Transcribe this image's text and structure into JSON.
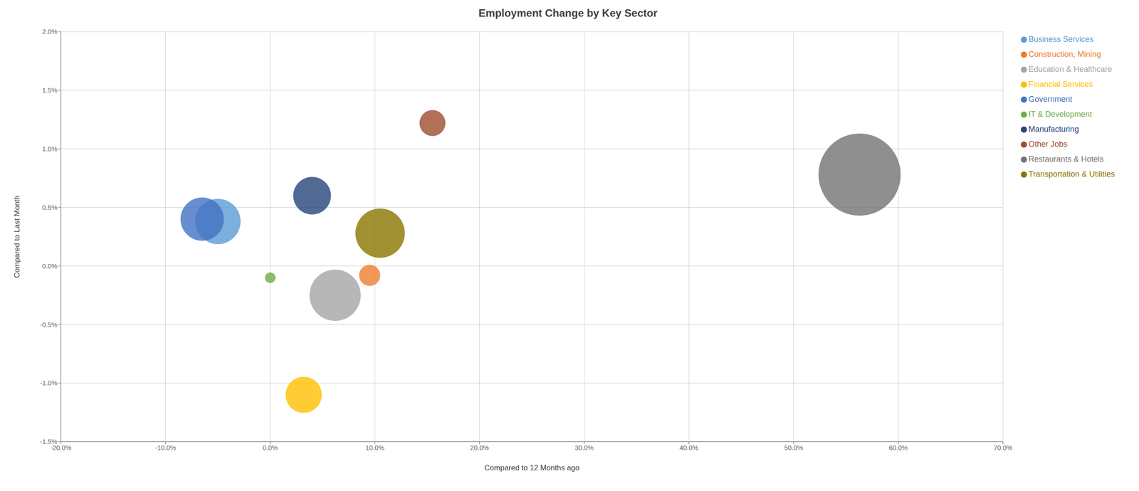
{
  "chart_data": {
    "type": "scatter",
    "title": "Employment Change by Key Sector",
    "xlabel": "Compared to 12 Months ago",
    "ylabel": "Compared to Last Month",
    "xlim": [
      -0.2,
      0.7
    ],
    "ylim": [
      -0.015,
      0.02
    ],
    "xticks": [
      {
        "value": -0.2,
        "label": "-20.0%"
      },
      {
        "value": -0.1,
        "label": "-10.0%"
      },
      {
        "value": 0.0,
        "label": "0.0%"
      },
      {
        "value": 0.1,
        "label": "10.0%"
      },
      {
        "value": 0.2,
        "label": "20.0%"
      },
      {
        "value": 0.3,
        "label": "30.0%"
      },
      {
        "value": 0.4,
        "label": "40.0%"
      },
      {
        "value": 0.5,
        "label": "50.0%"
      },
      {
        "value": 0.6,
        "label": "60.0%"
      },
      {
        "value": 0.7,
        "label": "70.0%"
      }
    ],
    "yticks": [
      {
        "value": -0.015,
        "label": "-1.5%"
      },
      {
        "value": -0.01,
        "label": "-1.0%"
      },
      {
        "value": -0.005,
        "label": "-0.5%"
      },
      {
        "value": 0.0,
        "label": "0.0%"
      },
      {
        "value": 0.005,
        "label": "0.5%"
      },
      {
        "value": 0.01,
        "label": "1.0%"
      },
      {
        "value": 0.015,
        "label": "1.5%"
      },
      {
        "value": 0.02,
        "label": "2.0%"
      }
    ],
    "grid": true,
    "legend": "right",
    "series": [
      {
        "name": "Business Services",
        "color": "#5b9bd5",
        "x": [
          -0.05
        ],
        "y": [
          0.0038
        ],
        "size": [
          5500
        ]
      },
      {
        "name": "Construction, Mining",
        "color": "#ed7d31",
        "x": [
          0.095
        ],
        "y": [
          -0.0008
        ],
        "size": [
          1200
        ]
      },
      {
        "name": "Education & Healthcare",
        "color": "#a5a5a5",
        "x": [
          0.062
        ],
        "y": [
          -0.0025
        ],
        "size": [
          7000
        ]
      },
      {
        "name": "Financial Services",
        "color": "#ffc000",
        "x": [
          0.032
        ],
        "y": [
          -0.011
        ],
        "size": [
          3500
        ]
      },
      {
        "name": "Government",
        "color": "#4472c4",
        "x": [
          -0.065
        ],
        "y": [
          0.004
        ],
        "size": [
          5000
        ]
      },
      {
        "name": "IT & Development",
        "color": "#70ad47",
        "x": [
          0.0
        ],
        "y": [
          -0.001
        ],
        "size": [
          300
        ]
      },
      {
        "name": "Manufacturing",
        "color": "#264478",
        "x": [
          0.04
        ],
        "y": [
          0.006
        ],
        "size": [
          3800
        ]
      },
      {
        "name": "Other Jobs",
        "color": "#9e4c2e",
        "x": [
          0.155
        ],
        "y": [
          0.0122
        ],
        "size": [
          1800
        ]
      },
      {
        "name": "Restaurants & Hotels",
        "color": "#737373",
        "x": [
          0.563
        ],
        "y": [
          0.0078
        ],
        "size": [
          18000
        ]
      },
      {
        "name": "Transportation & Utilities",
        "color": "#8b7500",
        "x": [
          0.105
        ],
        "y": [
          0.0028
        ],
        "size": [
          6500
        ]
      }
    ]
  }
}
